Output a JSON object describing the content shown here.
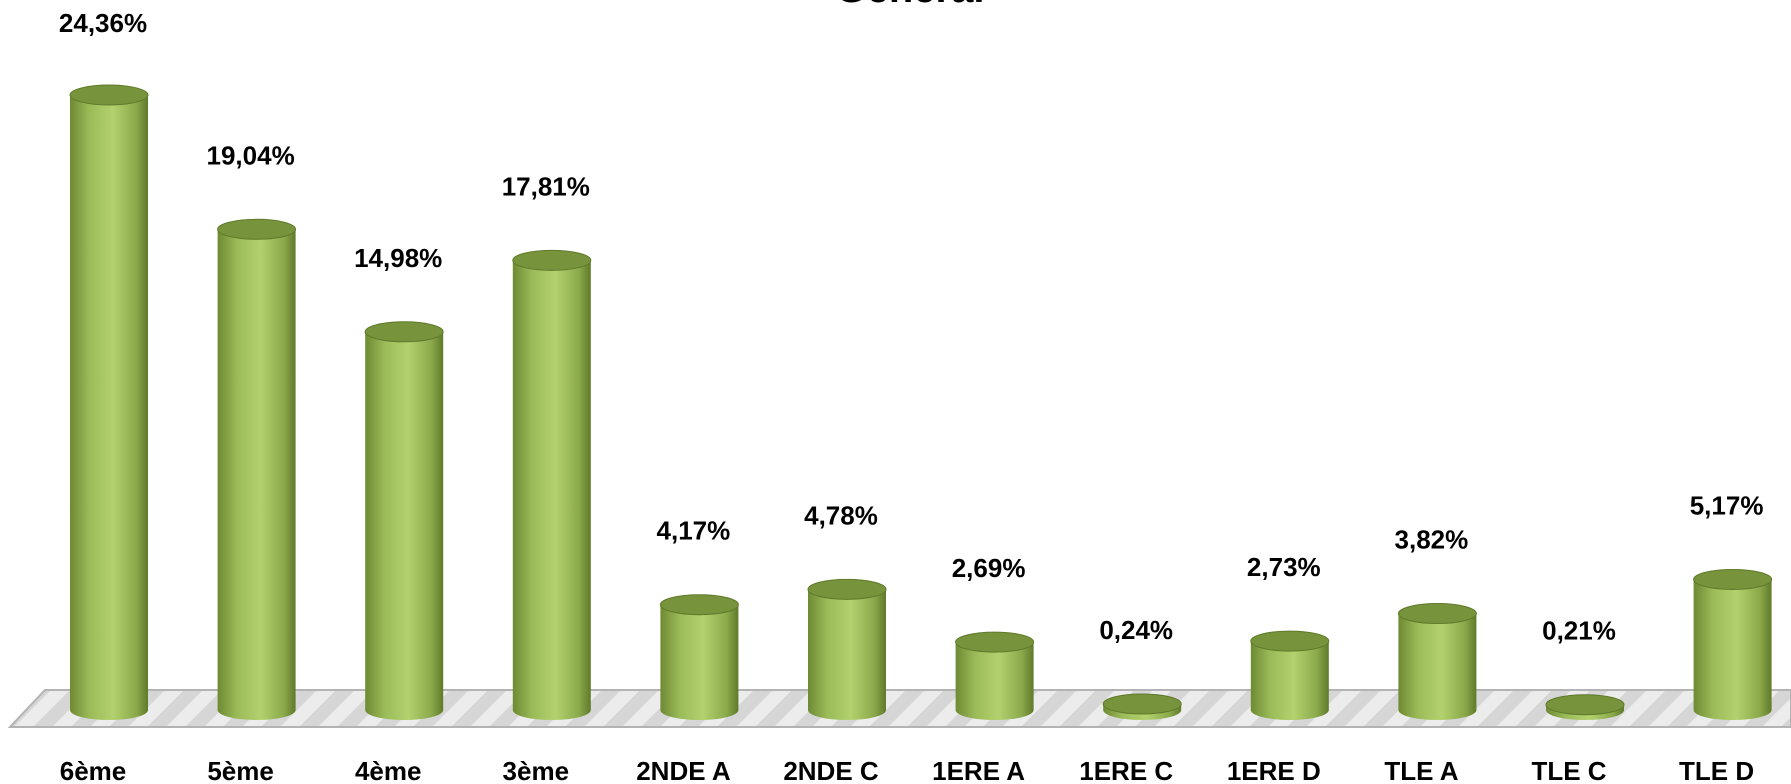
{
  "chart_data": {
    "type": "bar",
    "title": "Général",
    "categories": [
      "6ème",
      "5ème",
      "4ème",
      "3ème",
      "2NDE A",
      "2NDE C",
      "1ERE A",
      "1ERE C",
      "1ERE D",
      "TLE A",
      "TLE C",
      "TLE D"
    ],
    "values": [
      24.36,
      19.04,
      14.98,
      17.81,
      4.17,
      4.78,
      2.69,
      0.24,
      2.73,
      3.82,
      0.21,
      5.17
    ],
    "value_labels": [
      "24,36%",
      "19,04%",
      "14,98%",
      "17,81%",
      "4,17%",
      "4,78%",
      "2,69%",
      "0,24%",
      "2,73%",
      "3,82%",
      "0,21%",
      "5,17%"
    ],
    "xlabel": "",
    "ylabel": "",
    "ylim": [
      0,
      24.36
    ],
    "grid": false,
    "legend": "none",
    "bar_style": "3d-cylinder",
    "colors": {
      "bar_body": "#9bbb59",
      "bar_top": "#77933c",
      "bar_shadow": "#5f7a2a",
      "floor": "#e6e6e6",
      "floor_edge": "#b3b3b3",
      "text": "#000000"
    }
  }
}
